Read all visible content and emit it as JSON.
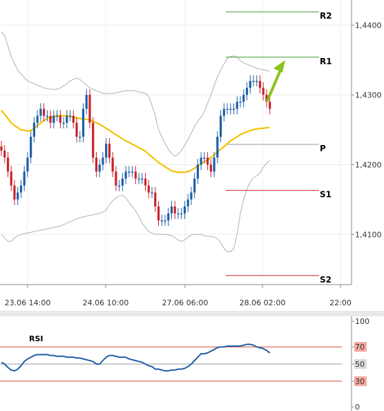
{
  "chart_data": [
    {
      "type": "candlestick",
      "title": "",
      "ylim": [
        1.4028,
        1.4436
      ],
      "x_tick_labels": [
        "23.06 14:00",
        "24.06 10:00",
        "27.06 06:00",
        "28.06 02:00",
        "22:00"
      ],
      "y_tick_labels": [
        "1,4400",
        "1,4300",
        "1,4200",
        "1,4100"
      ],
      "y_ticks": [
        1.44,
        1.43,
        1.42,
        1.41
      ],
      "colors": {
        "up": "#1f5fa8",
        "down": "#c8232b",
        "ma": "#f2c200",
        "bollinger": "#b0b0b0",
        "resistance": "#3a9a2e",
        "pivot": "#9a9a9a",
        "support": "#c8232b",
        "arrow": "#8cc21a"
      },
      "levels": [
        {
          "label": "R2",
          "value": 1.4419
        },
        {
          "label": "R1",
          "value": 1.4354
        },
        {
          "label": "P",
          "value": 1.4229
        },
        {
          "label": "S1",
          "value": 1.4163
        },
        {
          "label": "S2",
          "value": 1.4041
        }
      ],
      "close": [
        1.422,
        1.421,
        1.419,
        1.417,
        1.415,
        1.416,
        1.417,
        1.419,
        1.421,
        1.424,
        1.426,
        1.427,
        1.428,
        1.427,
        1.427,
        1.426,
        1.427,
        1.427,
        1.426,
        1.426,
        1.427,
        1.427,
        1.426,
        1.424,
        1.424,
        1.428,
        1.43,
        1.426,
        1.421,
        1.419,
        1.42,
        1.421,
        1.423,
        1.421,
        1.419,
        1.417,
        1.417,
        1.418,
        1.419,
        1.419,
        1.419,
        1.418,
        1.418,
        1.418,
        1.417,
        1.416,
        1.416,
        1.414,
        1.412,
        1.412,
        1.412,
        1.413,
        1.414,
        1.413,
        1.413,
        1.413,
        1.414,
        1.415,
        1.416,
        1.418,
        1.42,
        1.421,
        1.421,
        1.42,
        1.419,
        1.421,
        1.424,
        1.427,
        1.428,
        1.428,
        1.428,
        1.428,
        1.429,
        1.429,
        1.43,
        1.431,
        1.432,
        1.432,
        1.432,
        1.431,
        1.43,
        1.429,
        1.428
      ],
      "ma_20": [
        1.4278,
        1.4272,
        1.4266,
        1.426,
        1.4256,
        1.4253,
        1.425,
        1.4249,
        1.4248,
        1.4249,
        1.4252,
        1.4256,
        1.426,
        1.4263,
        1.4266,
        1.4268,
        1.4269,
        1.427,
        1.427,
        1.427,
        1.427,
        1.4269,
        1.4268,
        1.4267,
        1.4266,
        1.4266,
        1.4265,
        1.4264,
        1.4262,
        1.426,
        1.4258,
        1.4255,
        1.4252,
        1.4249,
        1.4246,
        1.4243,
        1.424,
        1.4237,
        1.4234,
        1.4232,
        1.4229,
        1.4227,
        1.4224,
        1.4222,
        1.4219,
        1.4215,
        1.4211,
        1.4207,
        1.4203,
        1.42,
        1.4197,
        1.4194,
        1.4191,
        1.419,
        1.4189,
        1.4189,
        1.4189,
        1.419,
        1.4192,
        1.4195,
        1.4198,
        1.4201,
        1.4204,
        1.4207,
        1.421,
        1.4214,
        1.4218,
        1.4222,
        1.4226,
        1.423,
        1.4234,
        1.4237,
        1.424,
        1.4243,
        1.4245,
        1.4247,
        1.4249,
        1.425,
        1.4251,
        1.4252,
        1.4252,
        1.4253,
        1.4253
      ],
      "upper_band": [
        1.439,
        1.4385,
        1.437,
        1.4355,
        1.4345,
        1.4335,
        1.433,
        1.4325,
        1.432,
        1.4318,
        1.4316,
        1.4314,
        1.4312,
        1.431,
        1.4309,
        1.4308,
        1.4308,
        1.4308,
        1.431,
        1.4313,
        1.4316,
        1.432,
        1.4322,
        1.4324,
        1.4322,
        1.4318,
        1.4314,
        1.431,
        1.4308,
        1.4306,
        1.4304,
        1.4302,
        1.4302,
        1.4302,
        1.4302,
        1.4303,
        1.4304,
        1.4305,
        1.4306,
        1.4306,
        1.4306,
        1.4306,
        1.4304,
        1.4303,
        1.4302,
        1.4298,
        1.4285,
        1.427,
        1.425,
        1.424,
        1.423,
        1.4222,
        1.4216,
        1.4212,
        1.4215,
        1.422,
        1.4228,
        1.4236,
        1.4245,
        1.4255,
        1.4262,
        1.4268,
        1.4276,
        1.4288,
        1.43,
        1.4313,
        1.4326,
        1.4336,
        1.4344,
        1.4352,
        1.4355,
        1.4356,
        1.4354,
        1.4349,
        1.4346,
        1.4344,
        1.4342,
        1.434,
        1.4338,
        1.4337,
        1.4336,
        1.4335,
        1.4334
      ],
      "lower_band": [
        1.41,
        1.4095,
        1.409,
        1.409,
        1.4095,
        1.4098,
        1.41,
        1.4101,
        1.4102,
        1.4103,
        1.4104,
        1.4105,
        1.4106,
        1.4107,
        1.4108,
        1.4109,
        1.411,
        1.4111,
        1.4112,
        1.4114,
        1.4116,
        1.4118,
        1.412,
        1.4122,
        1.4124,
        1.4125,
        1.4126,
        1.4127,
        1.4128,
        1.4129,
        1.413,
        1.4132,
        1.4135,
        1.4142,
        1.4148,
        1.4152,
        1.4155,
        1.4156,
        1.4152,
        1.4146,
        1.414,
        1.4134,
        1.4126,
        1.4116,
        1.411,
        1.4104,
        1.4102,
        1.41,
        1.41,
        1.41,
        1.41,
        1.4099,
        1.4098,
        1.4095,
        1.4092,
        1.409,
        1.4092,
        1.4096,
        1.4099,
        1.41,
        1.41,
        1.41,
        1.4098,
        1.4097,
        1.4097,
        1.4096,
        1.4094,
        1.4088,
        1.408,
        1.4075,
        1.4075,
        1.408,
        1.41,
        1.413,
        1.415,
        1.4165,
        1.4175,
        1.4181,
        1.4184,
        1.4188,
        1.4196,
        1.4202,
        1.4206
      ]
    },
    {
      "type": "line",
      "title": "RSI",
      "ylim": [
        0,
        100
      ],
      "y_tick_labels": [
        "100",
        "70",
        "50",
        "30",
        "0"
      ],
      "y_ticks": [
        100,
        70,
        50,
        30,
        0
      ],
      "levels": [
        70,
        50,
        30
      ],
      "series": [
        {
          "name": "RSI",
          "color": "#1f5fa8",
          "values": [
            52,
            50,
            46,
            43,
            42,
            44,
            48,
            53,
            56,
            58,
            60,
            61,
            61,
            61,
            61,
            60,
            60,
            59,
            59,
            59,
            58,
            58,
            58,
            57,
            57,
            56,
            55,
            54,
            53,
            50,
            50,
            54,
            58,
            60,
            60,
            59,
            58,
            58,
            58,
            56,
            55,
            54,
            53,
            52,
            50,
            48,
            47,
            44,
            44,
            43,
            42,
            42,
            43,
            43,
            44,
            44,
            45,
            47,
            50,
            54,
            58,
            62,
            62,
            63,
            65,
            67,
            69,
            70,
            70,
            71,
            71,
            71,
            71,
            71,
            72,
            73,
            73,
            72,
            70,
            69,
            68,
            66,
            63
          ]
        }
      ]
    }
  ]
}
